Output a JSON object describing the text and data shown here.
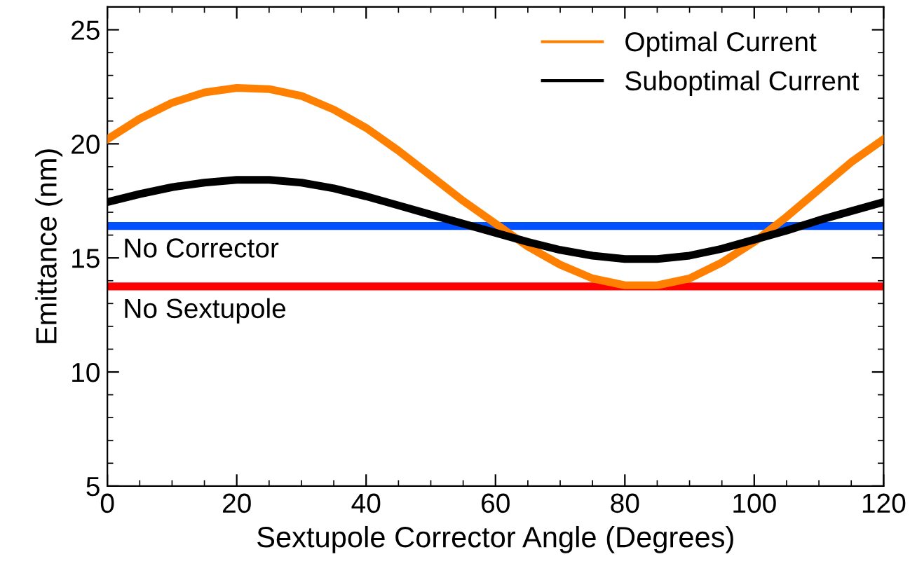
{
  "chart_data": {
    "type": "line",
    "xlabel": "Sextupole Corrector Angle (Degrees)",
    "ylabel": "Emittance (nm)",
    "x": [
      0,
      5,
      10,
      15,
      20,
      25,
      30,
      35,
      40,
      45,
      50,
      55,
      60,
      65,
      70,
      75,
      80,
      85,
      90,
      95,
      100,
      105,
      110,
      115,
      120
    ],
    "series": [
      {
        "name": "Optimal Current",
        "color": "#ff8000",
        "values": [
          20.2,
          21.1,
          21.8,
          22.25,
          22.45,
          22.4,
          22.1,
          21.5,
          20.7,
          19.7,
          18.6,
          17.5,
          16.5,
          15.5,
          14.7,
          14.1,
          13.8,
          13.8,
          14.1,
          14.8,
          15.7,
          16.8,
          18.0,
          19.2,
          20.2
        ]
      },
      {
        "name": "Suboptimal Current",
        "color": "#000000",
        "values": [
          17.45,
          17.8,
          18.1,
          18.3,
          18.42,
          18.42,
          18.3,
          18.05,
          17.7,
          17.3,
          16.9,
          16.5,
          16.1,
          15.7,
          15.35,
          15.1,
          14.95,
          14.95,
          15.1,
          15.4,
          15.8,
          16.2,
          16.65,
          17.05,
          17.45
        ]
      }
    ],
    "ref_lines": [
      {
        "axis": "y",
        "value": 16.4,
        "label": "No Corrector",
        "color": "#0050ff"
      },
      {
        "axis": "y",
        "value": 13.75,
        "label": "No Sextupole",
        "color": "#ff0000"
      }
    ],
    "xlim": [
      0,
      120
    ],
    "xticks": [
      0,
      20,
      40,
      60,
      80,
      100,
      120
    ],
    "ylim": [
      5,
      26
    ],
    "yticks": [
      5,
      10,
      15,
      20,
      25
    ],
    "grid": false,
    "legend": "top right",
    "marker": "none",
    "line_style": "solid"
  }
}
